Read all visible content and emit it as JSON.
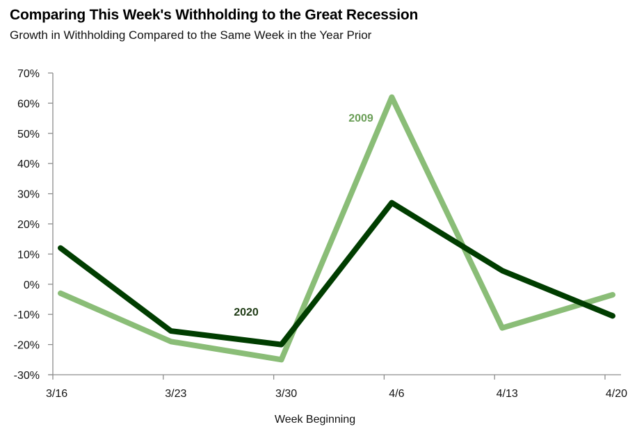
{
  "chart_data": {
    "type": "line",
    "title": "Comparing This Week's Withholding to the Great Recession",
    "subtitle": "Growth in Withholding Compared to the Same Week in the Year Prior",
    "xlabel": "Week Beginning",
    "ylabel": "",
    "categories": [
      "3/16",
      "3/23",
      "3/30",
      "4/6",
      "4/13",
      "4/20"
    ],
    "ylim": [
      -30,
      70
    ],
    "yticks": [
      -30,
      -20,
      -10,
      0,
      10,
      20,
      30,
      40,
      50,
      60,
      70
    ],
    "ytick_labels": [
      "-30%",
      "-20%",
      "-10%",
      "0%",
      "10%",
      "20%",
      "30%",
      "40%",
      "50%",
      "60%",
      "70%"
    ],
    "grid": false,
    "legend": "none (inline series labels)",
    "series": [
      {
        "name": "2009",
        "color": "#8abd77",
        "label_color": "#6a9e57",
        "values": [
          -3,
          -19,
          -25,
          62,
          -14.5,
          -3.5
        ]
      },
      {
        "name": "2020",
        "color": "#003d00",
        "label_color": "#1e3a14",
        "values": [
          12,
          -15.5,
          -20,
          27,
          4.5,
          -10.5
        ]
      }
    ]
  }
}
